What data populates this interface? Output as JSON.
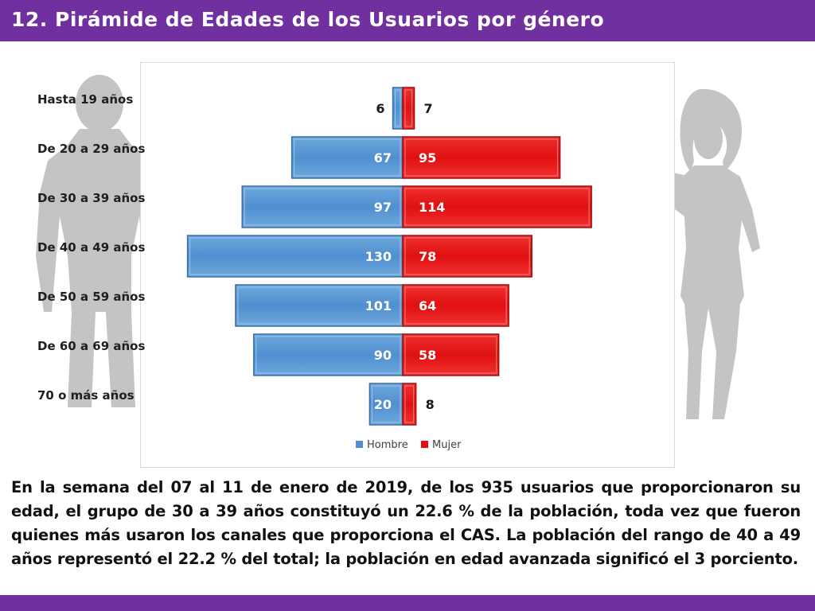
{
  "title": "12. Pirámide de Edades de los Usuarios por género",
  "chart_data": {
    "type": "bar",
    "orientation": "horizontal-pyramid",
    "categories": [
      "Hasta 19 años",
      "De 20 a 29 años",
      "De 30 a 39 años",
      "De 40 a 49 años",
      "De 50 a 59 años",
      "De 60 a 69 años",
      "70 o más años"
    ],
    "series": [
      {
        "name": "Hombre",
        "values": [
          6,
          67,
          97,
          130,
          101,
          90,
          20
        ],
        "color": "#4f8fd0"
      },
      {
        "name": "Mujer",
        "values": [
          7,
          95,
          114,
          78,
          64,
          58,
          8
        ],
        "color": "#e01010"
      }
    ],
    "legend_position": "bottom"
  },
  "summary": "En la semana del 07 al 11 de enero de 2019, de los 935 usuarios que proporcionaron su edad, el grupo de 30 a 39 años constituyó un 22.6 % de la población, toda vez que fueron quienes más usaron los canales que proporciona el CAS. La población del rango de 40 a 49 años representó el 22.2 % del total; la población en edad avanzada significó el 3 porciento.",
  "colors": {
    "accent": "#7030a0",
    "male": "#4f8fd0",
    "female": "#e01010",
    "silhouette": "#bfbfbf"
  }
}
